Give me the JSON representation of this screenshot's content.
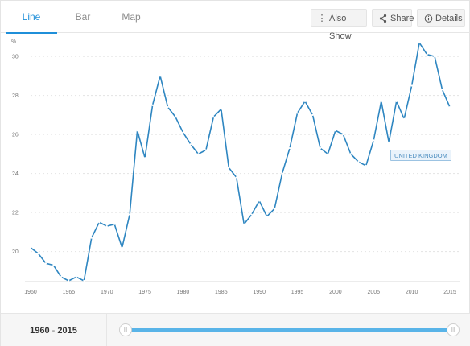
{
  "tabs": [
    {
      "label": "Line",
      "active": true
    },
    {
      "label": "Bar",
      "active": false
    },
    {
      "label": "Map",
      "active": false
    }
  ],
  "toolbar": {
    "also_show": "Also Show",
    "share": "Share",
    "details": "Details"
  },
  "icons": {
    "also_show": "vertical-dots-icon",
    "share": "share-icon",
    "details": "info-circle-icon"
  },
  "colors": {
    "accent": "#1f8fd9",
    "series": "#2e86c1",
    "slider": "#59b4e8"
  },
  "chart_data": {
    "type": "line",
    "ylabel": "%",
    "ylim": [
      18.5,
      31.2
    ],
    "yticks": [
      20,
      22,
      24,
      26,
      28,
      30
    ],
    "xlim": [
      1960,
      2015
    ],
    "xticks": [
      1960,
      1965,
      1970,
      1975,
      1980,
      1985,
      1990,
      1995,
      2000,
      2005,
      2010,
      2015
    ],
    "grid": "horizontal dashed",
    "series": [
      {
        "name": "UNITED KINGDOM",
        "x": [
          1960,
          1961,
          1962,
          1963,
          1964,
          1965,
          1966,
          1967,
          1968,
          1969,
          1970,
          1971,
          1972,
          1973,
          1974,
          1975,
          1976,
          1977,
          1978,
          1979,
          1980,
          1981,
          1982,
          1983,
          1984,
          1985,
          1986,
          1987,
          1988,
          1989,
          1990,
          1991,
          1992,
          1993,
          1994,
          1995,
          1996,
          1997,
          1998,
          1999,
          2000,
          2001,
          2002,
          2003,
          2004,
          2005,
          2006,
          2007,
          2008,
          2009,
          2010,
          2011,
          2012,
          2013,
          2014,
          2015
        ],
        "values": [
          20.2,
          19.9,
          19.4,
          19.3,
          18.7,
          18.5,
          18.7,
          18.5,
          20.7,
          21.5,
          21.3,
          21.4,
          20.2,
          21.9,
          26.2,
          24.8,
          27.5,
          29.0,
          27.4,
          26.9,
          26.1,
          25.5,
          25.0,
          25.2,
          26.9,
          27.3,
          24.3,
          23.8,
          21.4,
          21.9,
          22.6,
          21.8,
          22.2,
          24.0,
          25.3,
          27.1,
          27.7,
          27.0,
          25.3,
          25.0,
          26.2,
          26.0,
          25.0,
          24.6,
          24.4,
          25.7,
          27.7,
          25.6,
          27.7,
          26.8,
          28.5,
          30.7,
          30.1,
          30.0,
          28.3,
          27.4
        ]
      }
    ]
  },
  "tooltip": {
    "label": "UNITED KINGDOM"
  },
  "footer": {
    "range_start": "1960",
    "range_sep": " - ",
    "range_end": "2015",
    "handle_glyph": "|||"
  }
}
